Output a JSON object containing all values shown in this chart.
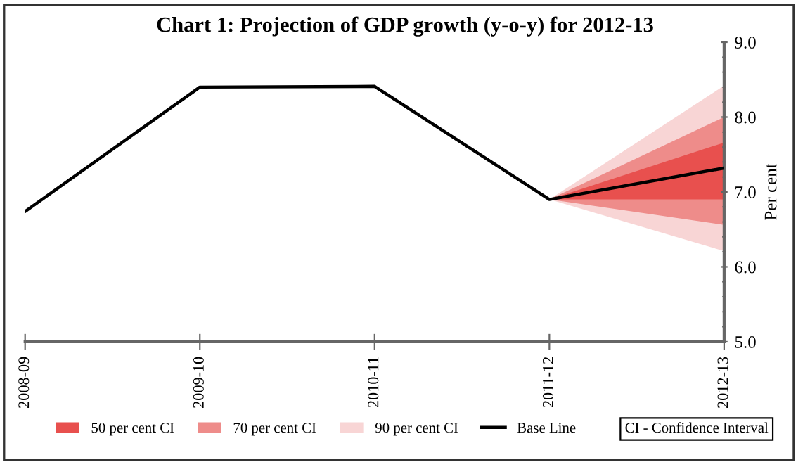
{
  "chart_data": {
    "type": "line",
    "title": "Chart 1: Projection of GDP growth (y-o-y) for 2012-13",
    "ylabel": "Per cent",
    "categories": [
      "2008-09",
      "2009-10",
      "2010-11",
      "2011-12",
      "2012-13"
    ],
    "series": [
      {
        "name": "90 per cent CI",
        "type": "area",
        "color": "#f8d5d5",
        "values": [
          null,
          null,
          null,
          null,
          null
        ],
        "lower": [
          null,
          null,
          null,
          6.9,
          6.21
        ],
        "upper": [
          null,
          null,
          null,
          6.9,
          8.42
        ]
      },
      {
        "name": "70 per cent CI",
        "type": "area",
        "color": "#ee8c8a",
        "values": [
          null,
          null,
          null,
          null,
          null
        ],
        "lower": [
          null,
          null,
          null,
          6.9,
          6.56
        ],
        "upper": [
          null,
          null,
          null,
          6.9,
          8.0
        ]
      },
      {
        "name": "50 per cent CI",
        "type": "area",
        "color": "#e8504e",
        "values": [
          null,
          null,
          null,
          null,
          null
        ],
        "lower": [
          null,
          null,
          null,
          6.9,
          6.9
        ],
        "upper": [
          null,
          null,
          null,
          6.9,
          7.66
        ]
      },
      {
        "name": "Base Line",
        "color": "#000000",
        "values": [
          6.74,
          8.4,
          8.41,
          6.9,
          7.32
        ]
      }
    ],
    "ylim": [
      5.0,
      9.0
    ],
    "yticks": [
      {
        "value": 5.0,
        "label": "5.0"
      },
      {
        "value": 6.0,
        "label": "6.0"
      },
      {
        "value": 7.0,
        "label": "7.0"
      },
      {
        "value": 8.0,
        "label": "8.0"
      },
      {
        "value": 9.0,
        "label": "9.0"
      }
    ],
    "annotations": [
      "CI - Confidence Interval"
    ],
    "legend": "bottom",
    "grid": false,
    "marker": "none",
    "line_style": "solid"
  }
}
